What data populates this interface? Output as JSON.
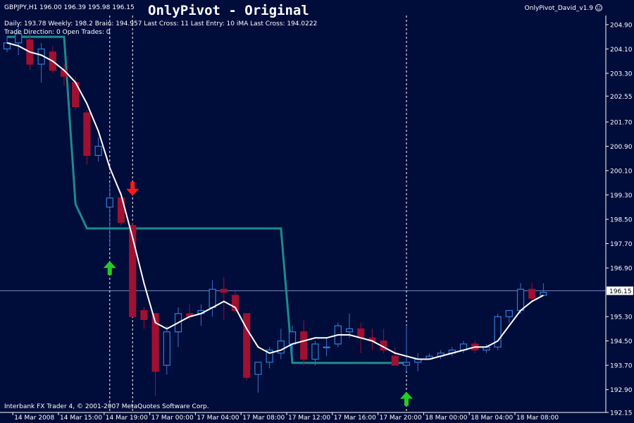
{
  "header": {
    "symbol_line": "GBPJPY,H1  196.00 196.39 195.98 196.15",
    "title": "OnlyPivot - Original",
    "indicator_name": "OnlyPivot_David_v1.9",
    "smiley_icon": "smiley-icon",
    "info_line1": "Daily: 193.78 Weekly: 198.2 Brain: 194.957 Last Cross: 11 Last Entry: 10 iMA Last Cross: 194.0222",
    "info_line2": "Trade Direction: 0 Open Trades: 0"
  },
  "footer": {
    "copyright": "Interbank FX Trader 4, © 2001-2007 MetaQuotes Software Corp."
  },
  "colors": {
    "background": "#000c3a",
    "bull_candle": "#2f7fd6",
    "bear_candle": "#a01030",
    "wick": "#3a6fd0",
    "ma_line": "#ffffff",
    "pivot_line": "#1a8c8c",
    "price_line": "#6f8fbf",
    "buy_arrow": "#22cc22",
    "sell_arrow": "#ff1a1a",
    "current_price_bg": "#ffffff",
    "current_price_text": "#000000"
  },
  "chart_data": {
    "type": "candlestick",
    "symbol": "GBPJPY",
    "timeframe": "H1",
    "ylim": [
      192.15,
      205.2
    ],
    "y_ticks": [
      "204.90",
      "204.10",
      "203.30",
      "202.55",
      "201.70",
      "200.90",
      "200.10",
      "199.30",
      "198.50",
      "197.70",
      "196.90",
      "196.15",
      "195.30",
      "194.50",
      "193.70",
      "192.90",
      "192.15"
    ],
    "current_price": "196.15",
    "x_ticks": [
      {
        "label": "14 Mar 2008",
        "index": 1
      },
      {
        "label": "14 Mar 15:00",
        "index": 5
      },
      {
        "label": "14 Mar 19:00",
        "index": 9
      },
      {
        "label": "17 Mar 00:00",
        "index": 13
      },
      {
        "label": "17 Mar 04:00",
        "index": 17
      },
      {
        "label": "17 Mar 08:00",
        "index": 21
      },
      {
        "label": "17 Mar 12:00",
        "index": 25
      },
      {
        "label": "17 Mar 16:00",
        "index": 29
      },
      {
        "label": "17 Mar 20:00",
        "index": 33
      },
      {
        "label": "18 Mar 00:00",
        "index": 37
      },
      {
        "label": "18 Mar 04:00",
        "index": 41
      },
      {
        "label": "18 Mar 08:00",
        "index": 45
      }
    ],
    "candles": [
      {
        "o": 204.1,
        "h": 204.5,
        "l": 204.0,
        "c": 204.3
      },
      {
        "o": 204.3,
        "h": 204.9,
        "l": 203.9,
        "c": 204.6
      },
      {
        "o": 204.4,
        "h": 204.6,
        "l": 203.4,
        "c": 203.6
      },
      {
        "o": 203.6,
        "h": 204.3,
        "l": 203.0,
        "c": 204.1
      },
      {
        "o": 204.0,
        "h": 204.2,
        "l": 203.3,
        "c": 203.4
      },
      {
        "o": 203.4,
        "h": 203.6,
        "l": 202.9,
        "c": 203.2
      },
      {
        "o": 203.0,
        "h": 203.2,
        "l": 202.1,
        "c": 202.2
      },
      {
        "o": 202.0,
        "h": 202.1,
        "l": 200.3,
        "c": 200.6
      },
      {
        "o": 200.6,
        "h": 201.2,
        "l": 200.4,
        "c": 200.9
      },
      {
        "o": 198.9,
        "h": 199.7,
        "l": 197.6,
        "c": 199.2
      },
      {
        "o": 199.2,
        "h": 199.4,
        "l": 198.3,
        "c": 198.4
      },
      {
        "o": 198.3,
        "h": 198.4,
        "l": 195.3,
        "c": 195.3
      },
      {
        "o": 195.5,
        "h": 195.6,
        "l": 194.9,
        "c": 195.2
      },
      {
        "o": 195.4,
        "h": 195.4,
        "l": 192.7,
        "c": 193.5
      },
      {
        "o": 193.7,
        "h": 195.0,
        "l": 193.4,
        "c": 194.8
      },
      {
        "o": 194.8,
        "h": 195.6,
        "l": 194.3,
        "c": 195.4
      },
      {
        "o": 195.4,
        "h": 195.7,
        "l": 195.2,
        "c": 195.3
      },
      {
        "o": 195.4,
        "h": 195.7,
        "l": 195.0,
        "c": 195.5
      },
      {
        "o": 195.6,
        "h": 196.5,
        "l": 195.3,
        "c": 196.2
      },
      {
        "o": 196.2,
        "h": 196.6,
        "l": 195.2,
        "c": 196.1
      },
      {
        "o": 196.0,
        "h": 196.2,
        "l": 195.4,
        "c": 195.5
      },
      {
        "o": 195.4,
        "h": 195.4,
        "l": 193.2,
        "c": 193.3
      },
      {
        "o": 193.4,
        "h": 193.8,
        "l": 192.8,
        "c": 193.8
      },
      {
        "o": 193.8,
        "h": 194.3,
        "l": 193.6,
        "c": 194.2
      },
      {
        "o": 194.1,
        "h": 194.9,
        "l": 193.9,
        "c": 194.5
      },
      {
        "o": 194.4,
        "h": 195.0,
        "l": 194.0,
        "c": 194.8
      },
      {
        "o": 194.8,
        "h": 195.2,
        "l": 193.7,
        "c": 193.9
      },
      {
        "o": 193.9,
        "h": 194.5,
        "l": 193.7,
        "c": 194.4
      },
      {
        "o": 194.3,
        "h": 194.6,
        "l": 194.0,
        "c": 194.3
      },
      {
        "o": 194.4,
        "h": 195.1,
        "l": 194.3,
        "c": 195.0
      },
      {
        "o": 194.8,
        "h": 195.4,
        "l": 194.6,
        "c": 194.9
      },
      {
        "o": 194.9,
        "h": 195.1,
        "l": 194.1,
        "c": 194.6
      },
      {
        "o": 194.6,
        "h": 194.9,
        "l": 194.2,
        "c": 194.5
      },
      {
        "o": 194.5,
        "h": 194.9,
        "l": 194.1,
        "c": 194.2
      },
      {
        "o": 194.0,
        "h": 194.3,
        "l": 193.7,
        "c": 193.7
      },
      {
        "o": 193.7,
        "h": 195.0,
        "l": 193.5,
        "c": 193.8
      },
      {
        "o": 193.8,
        "h": 194.1,
        "l": 193.5,
        "c": 193.9
      },
      {
        "o": 193.9,
        "h": 194.1,
        "l": 193.9,
        "c": 194.0
      },
      {
        "o": 194.0,
        "h": 194.2,
        "l": 193.9,
        "c": 194.1
      },
      {
        "o": 194.1,
        "h": 194.3,
        "l": 194.0,
        "c": 194.2
      },
      {
        "o": 194.2,
        "h": 194.5,
        "l": 194.1,
        "c": 194.4
      },
      {
        "o": 194.4,
        "h": 194.5,
        "l": 194.1,
        "c": 194.2
      },
      {
        "o": 194.2,
        "h": 194.4,
        "l": 194.1,
        "c": 194.3
      },
      {
        "o": 194.3,
        "h": 195.4,
        "l": 194.2,
        "c": 195.3
      },
      {
        "o": 195.3,
        "h": 195.5,
        "l": 195.1,
        "c": 195.5
      },
      {
        "o": 195.5,
        "h": 196.4,
        "l": 195.4,
        "c": 196.2
      },
      {
        "o": 196.2,
        "h": 196.4,
        "l": 195.8,
        "c": 195.9
      },
      {
        "o": 196.0,
        "h": 196.4,
        "l": 196.0,
        "c": 196.1
      }
    ],
    "ma_line": [
      204.3,
      204.2,
      204.0,
      203.9,
      203.7,
      203.4,
      203.0,
      202.3,
      201.4,
      200.2,
      199.3,
      197.9,
      196.4,
      195.1,
      194.9,
      195.1,
      195.3,
      195.4,
      195.6,
      195.8,
      195.6,
      194.9,
      194.3,
      194.1,
      194.2,
      194.4,
      194.5,
      194.6,
      194.6,
      194.7,
      194.7,
      194.6,
      194.5,
      194.3,
      194.1,
      194.0,
      193.9,
      193.9,
      194.0,
      194.1,
      194.2,
      194.3,
      194.3,
      194.5,
      195.0,
      195.5,
      195.8,
      196.0
    ],
    "pivot_line": [
      {
        "i": 0,
        "y": 204.5
      },
      {
        "i": 5,
        "y": 204.5
      },
      {
        "i": 6,
        "y": 199.0
      },
      {
        "i": 7,
        "y": 198.2
      },
      {
        "i": 24,
        "y": 198.2
      },
      {
        "i": 25,
        "y": 193.78
      },
      {
        "i": 35,
        "y": 193.78
      }
    ],
    "vertical_markers": [
      9,
      11,
      35
    ],
    "arrows": [
      {
        "type": "buy",
        "i": 9,
        "y": 196.9
      },
      {
        "type": "sell",
        "i": 11,
        "y": 199.5
      },
      {
        "type": "buy",
        "i": 35,
        "y": 192.6
      }
    ]
  }
}
